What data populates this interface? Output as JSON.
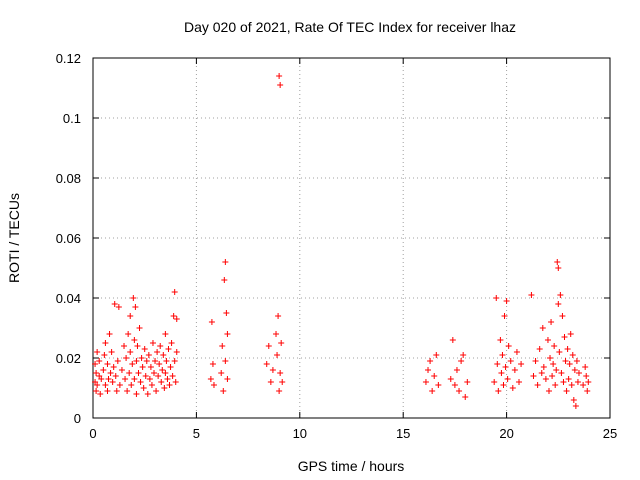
{
  "chart_data": {
    "type": "scatter",
    "title": "Day 020 of 2021, Rate Of TEC Index for receiver lhaz",
    "xlabel": "GPS time / hours",
    "ylabel": "ROTI / TECUs",
    "xlim": [
      0,
      25
    ],
    "ylim": [
      0,
      0.12
    ],
    "xticks": [
      0,
      5,
      10,
      15,
      20,
      25
    ],
    "yticks": [
      0,
      0.02,
      0.04,
      0.06,
      0.08,
      0.1,
      0.12
    ],
    "xtick_labels": [
      "0",
      "5",
      "10",
      "15",
      "20",
      "25"
    ],
    "ytick_labels": [
      "0",
      "0.02",
      "0.04",
      "0.06",
      "0.08",
      "0.1",
      "0.12"
    ],
    "grid": true,
    "marker": "+",
    "color": "#ff0000",
    "series": [
      {
        "points": [
          [
            0.1,
            0.012
          ],
          [
            0.1,
            0.018
          ],
          [
            0.15,
            0.009
          ],
          [
            0.15,
            0.015
          ],
          [
            0.2,
            0.022
          ],
          [
            0.2,
            0.011
          ],
          [
            0.3,
            0.014
          ],
          [
            0.3,
            0.019
          ],
          [
            0.35,
            0.008
          ],
          [
            0.4,
            0.013
          ],
          [
            0.5,
            0.016
          ],
          [
            0.55,
            0.021
          ],
          [
            0.6,
            0.011
          ],
          [
            0.6,
            0.025
          ],
          [
            0.7,
            0.018
          ],
          [
            0.7,
            0.009
          ],
          [
            0.75,
            0.013
          ],
          [
            0.8,
            0.028
          ],
          [
            0.85,
            0.015
          ],
          [
            0.9,
            0.022
          ],
          [
            0.95,
            0.012
          ],
          [
            1.0,
            0.017
          ],
          [
            1.05,
            0.038
          ],
          [
            1.1,
            0.014
          ],
          [
            1.15,
            0.009
          ],
          [
            1.2,
            0.019
          ],
          [
            1.25,
            0.037
          ],
          [
            1.3,
            0.011
          ],
          [
            1.4,
            0.016
          ],
          [
            1.5,
            0.024
          ],
          [
            1.55,
            0.013
          ],
          [
            1.6,
            0.02
          ],
          [
            1.65,
            0.009
          ],
          [
            1.7,
            0.028
          ],
          [
            1.75,
            0.015
          ],
          [
            1.8,
            0.022
          ],
          [
            1.8,
            0.034
          ],
          [
            1.85,
            0.011
          ],
          [
            1.9,
            0.018
          ],
          [
            1.95,
            0.04
          ],
          [
            2.0,
            0.026
          ],
          [
            2.0,
            0.013
          ],
          [
            2.05,
            0.037
          ],
          [
            2.1,
            0.019
          ],
          [
            2.1,
            0.008
          ],
          [
            2.15,
            0.024
          ],
          [
            2.2,
            0.015
          ],
          [
            2.25,
            0.03
          ],
          [
            2.3,
            0.012
          ],
          [
            2.35,
            0.02
          ],
          [
            2.4,
            0.017
          ],
          [
            2.45,
            0.01
          ],
          [
            2.5,
            0.023
          ],
          [
            2.55,
            0.014
          ],
          [
            2.6,
            0.019
          ],
          [
            2.65,
            0.008
          ],
          [
            2.7,
            0.021
          ],
          [
            2.75,
            0.013
          ],
          [
            2.8,
            0.017
          ],
          [
            2.85,
            0.011
          ],
          [
            2.9,
            0.025
          ],
          [
            2.95,
            0.015
          ],
          [
            3.0,
            0.019
          ],
          [
            3.05,
            0.009
          ],
          [
            3.1,
            0.022
          ],
          [
            3.15,
            0.014
          ],
          [
            3.2,
            0.018
          ],
          [
            3.25,
            0.024
          ],
          [
            3.3,
            0.012
          ],
          [
            3.35,
            0.016
          ],
          [
            3.4,
            0.021
          ],
          [
            3.45,
            0.01
          ],
          [
            3.5,
            0.028
          ],
          [
            3.5,
            0.015
          ],
          [
            3.55,
            0.019
          ],
          [
            3.6,
            0.013
          ],
          [
            3.65,
            0.023
          ],
          [
            3.7,
            0.011
          ],
          [
            3.75,
            0.017
          ],
          [
            3.8,
            0.025
          ],
          [
            3.85,
            0.014
          ],
          [
            3.9,
            0.034
          ],
          [
            3.95,
            0.019
          ],
          [
            3.95,
            0.042
          ],
          [
            4.0,
            0.012
          ],
          [
            4.05,
            0.022
          ],
          [
            4.05,
            0.033
          ],
          [
            5.7,
            0.013
          ],
          [
            5.75,
            0.032
          ],
          [
            5.8,
            0.018
          ],
          [
            5.85,
            0.011
          ],
          [
            6.2,
            0.015
          ],
          [
            6.25,
            0.024
          ],
          [
            6.3,
            0.009
          ],
          [
            6.35,
            0.046
          ],
          [
            6.4,
            0.052
          ],
          [
            6.4,
            0.019
          ],
          [
            6.45,
            0.035
          ],
          [
            6.5,
            0.013
          ],
          [
            6.5,
            0.028
          ],
          [
            8.4,
            0.018
          ],
          [
            8.5,
            0.024
          ],
          [
            8.6,
            0.012
          ],
          [
            8.7,
            0.016
          ],
          [
            8.85,
            0.028
          ],
          [
            8.9,
            0.021
          ],
          [
            8.95,
            0.034
          ],
          [
            9.0,
            0.009
          ],
          [
            9.0,
            0.114
          ],
          [
            9.05,
            0.111
          ],
          [
            9.05,
            0.015
          ],
          [
            9.1,
            0.025
          ],
          [
            9.15,
            0.012
          ],
          [
            16.1,
            0.012
          ],
          [
            16.2,
            0.016
          ],
          [
            16.3,
            0.019
          ],
          [
            16.4,
            0.009
          ],
          [
            16.5,
            0.014
          ],
          [
            16.6,
            0.021
          ],
          [
            16.7,
            0.011
          ],
          [
            17.3,
            0.013
          ],
          [
            17.4,
            0.026
          ],
          [
            17.5,
            0.011
          ],
          [
            17.6,
            0.016
          ],
          [
            17.7,
            0.009
          ],
          [
            17.8,
            0.019
          ],
          [
            17.9,
            0.021
          ],
          [
            18.0,
            0.007
          ],
          [
            18.1,
            0.012
          ],
          [
            19.4,
            0.012
          ],
          [
            19.5,
            0.04
          ],
          [
            19.55,
            0.018
          ],
          [
            19.6,
            0.009
          ],
          [
            19.7,
            0.026
          ],
          [
            19.75,
            0.015
          ],
          [
            19.8,
            0.021
          ],
          [
            19.85,
            0.011
          ],
          [
            19.9,
            0.034
          ],
          [
            19.95,
            0.017
          ],
          [
            20.0,
            0.039
          ],
          [
            20.05,
            0.013
          ],
          [
            20.1,
            0.024
          ],
          [
            20.2,
            0.019
          ],
          [
            20.3,
            0.01
          ],
          [
            20.4,
            0.016
          ],
          [
            20.5,
            0.022
          ],
          [
            20.6,
            0.012
          ],
          [
            20.7,
            0.018
          ],
          [
            21.2,
            0.041
          ],
          [
            21.3,
            0.014
          ],
          [
            21.4,
            0.019
          ],
          [
            21.5,
            0.011
          ],
          [
            21.6,
            0.023
          ],
          [
            21.7,
            0.015
          ],
          [
            21.75,
            0.03
          ],
          [
            21.8,
            0.017
          ],
          [
            21.9,
            0.013
          ],
          [
            22.0,
            0.026
          ],
          [
            22.05,
            0.009
          ],
          [
            22.1,
            0.02
          ],
          [
            22.15,
            0.032
          ],
          [
            22.2,
            0.014
          ],
          [
            22.25,
            0.018
          ],
          [
            22.3,
            0.024
          ],
          [
            22.35,
            0.011
          ],
          [
            22.4,
            0.016
          ],
          [
            22.45,
            0.052
          ],
          [
            22.5,
            0.05
          ],
          [
            22.5,
            0.038
          ],
          [
            22.55,
            0.022
          ],
          [
            22.6,
            0.041
          ],
          [
            22.65,
            0.015
          ],
          [
            22.7,
            0.034
          ],
          [
            22.75,
            0.012
          ],
          [
            22.8,
            0.027
          ],
          [
            22.85,
            0.019
          ],
          [
            22.9,
            0.009
          ],
          [
            22.95,
            0.023
          ],
          [
            23.0,
            0.013
          ],
          [
            23.05,
            0.018
          ],
          [
            23.1,
            0.028
          ],
          [
            23.15,
            0.011
          ],
          [
            23.2,
            0.021
          ],
          [
            23.25,
            0.006
          ],
          [
            23.3,
            0.016
          ],
          [
            23.35,
            0.004
          ],
          [
            23.4,
            0.019
          ],
          [
            23.45,
            0.012
          ],
          [
            23.5,
            0.015
          ],
          [
            23.7,
            0.011
          ],
          [
            23.8,
            0.017
          ],
          [
            23.85,
            0.014
          ],
          [
            23.9,
            0.009
          ],
          [
            23.95,
            0.012
          ]
        ]
      }
    ]
  }
}
